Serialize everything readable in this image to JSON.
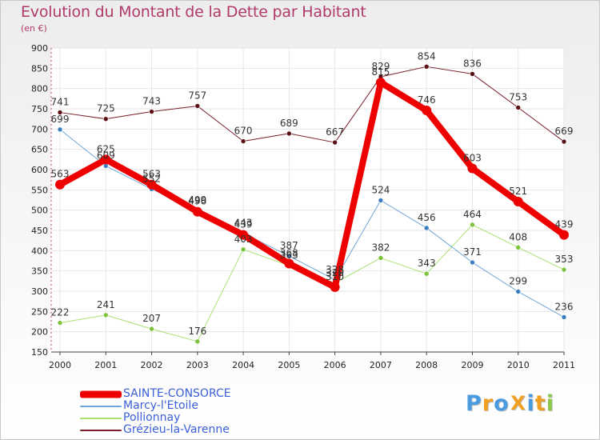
{
  "title": "Evolution du Montant de la Dette par Habitant",
  "subtitle": "(en €)",
  "logo": {
    "text": "Proxiti",
    "letters": [
      {
        "ch": "P",
        "color": "#4a9be0"
      },
      {
        "ch": "r",
        "color": "#f0a020"
      },
      {
        "ch": "o",
        "color": "#4a9be0"
      },
      {
        "ch": "X",
        "color": "#f0a020"
      },
      {
        "ch": "i",
        "color": "#4a9be0"
      },
      {
        "ch": "t",
        "color": "#f0a020"
      },
      {
        "ch": "i",
        "color": "#8cc84b"
      }
    ]
  },
  "chart_data": {
    "type": "line",
    "title": "Evolution du Montant de la Dette par Habitant",
    "subtitle": "(en €)",
    "x": [
      2000,
      2001,
      2002,
      2003,
      2004,
      2005,
      2006,
      2007,
      2008,
      2009,
      2010,
      2011
    ],
    "ylim": [
      150,
      900
    ],
    "yticks": [
      150,
      200,
      250,
      300,
      350,
      400,
      450,
      500,
      550,
      600,
      650,
      700,
      750,
      800,
      850,
      900
    ],
    "grid": true,
    "legend_position": "bottom-left",
    "series": [
      {
        "name": "Grézieu-la-Varenne",
        "color": "#7a1f2a",
        "point_color": "#5a1016",
        "width": 1,
        "values": [
          741,
          725,
          743,
          757,
          670,
          689,
          667,
          829,
          854,
          836,
          753,
          669
        ]
      },
      {
        "name": "Pollionnay",
        "color": "#a8e070",
        "point_color": "#7cc23a",
        "width": 1,
        "values": [
          222,
          241,
          207,
          176,
          403,
          363,
          320,
          382,
          343,
          464,
          408,
          353
        ]
      },
      {
        "name": "Marcy-l'Etoile",
        "color": "#6fa6d8",
        "point_color": "#3a7ec0",
        "width": 1,
        "values": [
          699,
          609,
          552,
          499,
          443,
          387,
          328,
          524,
          456,
          371,
          299,
          236
        ]
      },
      {
        "name": "SAINTE-CONSORCE",
        "color": "#ee0000",
        "point_color": "#ee0000",
        "width": 8,
        "values": [
          563,
          625,
          563,
          496,
          439,
          368,
          310,
          815,
          746,
          603,
          521,
          439
        ]
      }
    ],
    "legend_order": [
      "SAINTE-CONSORCE",
      "Marcy-l'Etoile",
      "Pollionnay",
      "Grézieu-la-Varenne"
    ]
  }
}
